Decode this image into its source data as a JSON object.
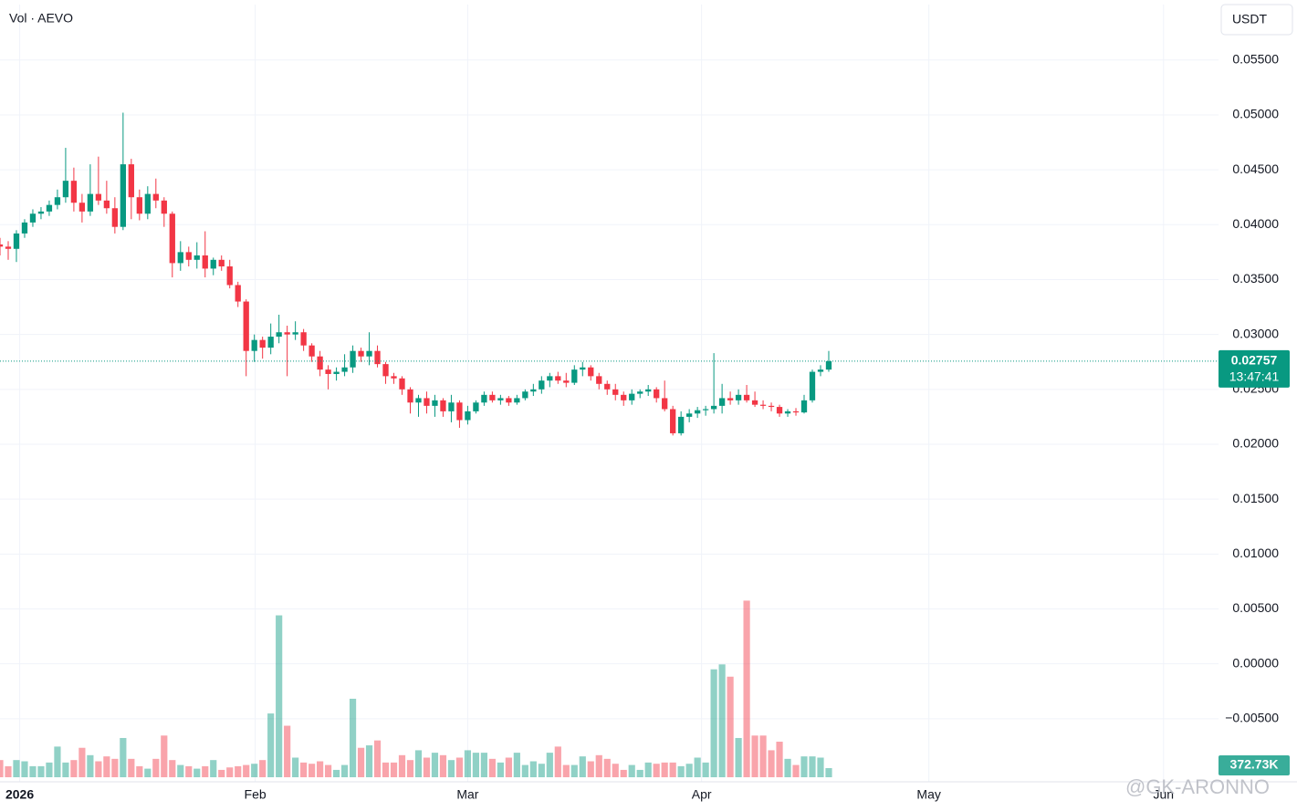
{
  "chart_data": {
    "type": "candlestick",
    "title": "Vol · AEVO",
    "currency": "USDT",
    "up_color": "#089981",
    "down_color": "#f23645",
    "grid": true,
    "ylim": [
      -0.01033,
      0.06005
    ],
    "yticks": [
      {
        "value": 0.055,
        "label": "0.05500"
      },
      {
        "value": 0.05,
        "label": "0.05000"
      },
      {
        "value": 0.045,
        "label": "0.04500"
      },
      {
        "value": 0.04,
        "label": "0.04000"
      },
      {
        "value": 0.035,
        "label": "0.03500"
      },
      {
        "value": 0.03,
        "label": "0.03000"
      },
      {
        "value": 0.025,
        "label": "0.02500"
      },
      {
        "value": 0.02,
        "label": "0.02000"
      },
      {
        "value": 0.015,
        "label": "0.01500"
      },
      {
        "value": 0.01,
        "label": "0.01000"
      },
      {
        "value": 0.005,
        "label": "0.00500"
      },
      {
        "value": 0,
        "label": "0.00000"
      },
      {
        "value": -0.005,
        "label": "−0.00500"
      }
    ],
    "xlim": [
      0,
      148.5
    ],
    "xticks": [
      {
        "value": 2.4,
        "label": "2026"
      },
      {
        "value": 31.1,
        "label": "Feb"
      },
      {
        "value": 57,
        "label": "Mar"
      },
      {
        "value": 85.5,
        "label": "Apr"
      },
      {
        "value": 113.2,
        "label": "May"
      },
      {
        "value": 141.8,
        "label": "Jun"
      }
    ],
    "vlim": [
      0,
      9000000
    ],
    "last_price": 0.02757,
    "countdown": "13:47:41",
    "last_volume_label": "372.73K",
    "watermark": "@GK-ARONNO",
    "ohlc": [
      [
        0.0382,
        0.0388,
        0.0372,
        0.038
      ],
      [
        0.038,
        0.0385,
        0.0368,
        0.0378
      ],
      [
        0.0378,
        0.0395,
        0.0366,
        0.0392
      ],
      [
        0.0392,
        0.0405,
        0.0388,
        0.0402
      ],
      [
        0.0402,
        0.0414,
        0.0398,
        0.041
      ],
      [
        0.041,
        0.0416,
        0.0405,
        0.0412
      ],
      [
        0.0412,
        0.0422,
        0.0408,
        0.0418
      ],
      [
        0.0418,
        0.0432,
        0.0414,
        0.0425
      ],
      [
        0.0425,
        0.047,
        0.042,
        0.044
      ],
      [
        0.044,
        0.0452,
        0.0412,
        0.042
      ],
      [
        0.042,
        0.0428,
        0.0402,
        0.0412
      ],
      [
        0.0412,
        0.0455,
        0.0408,
        0.0428
      ],
      [
        0.0428,
        0.0462,
        0.0418,
        0.0422
      ],
      [
        0.0422,
        0.044,
        0.041,
        0.0415
      ],
      [
        0.0415,
        0.0425,
        0.0392,
        0.0398
      ],
      [
        0.0398,
        0.0502,
        0.0395,
        0.0455
      ],
      [
        0.0455,
        0.046,
        0.0405,
        0.0425
      ],
      [
        0.0425,
        0.0432,
        0.0404,
        0.041
      ],
      [
        0.041,
        0.0435,
        0.0405,
        0.0428
      ],
      [
        0.0428,
        0.0442,
        0.0415,
        0.0422
      ],
      [
        0.0422,
        0.0425,
        0.0398,
        0.041
      ],
      [
        0.041,
        0.0412,
        0.0352,
        0.0365
      ],
      [
        0.0365,
        0.0385,
        0.0358,
        0.0375
      ],
      [
        0.0375,
        0.038,
        0.0362,
        0.0368
      ],
      [
        0.0368,
        0.0384,
        0.036,
        0.0372
      ],
      [
        0.0372,
        0.0394,
        0.0352,
        0.036
      ],
      [
        0.036,
        0.037,
        0.0354,
        0.0368
      ],
      [
        0.0368,
        0.0372,
        0.0358,
        0.0362
      ],
      [
        0.0362,
        0.0368,
        0.0342,
        0.0345
      ],
      [
        0.0345,
        0.0348,
        0.0325,
        0.033
      ],
      [
        0.033,
        0.0332,
        0.0262,
        0.0285
      ],
      [
        0.0285,
        0.03,
        0.0275,
        0.0295
      ],
      [
        0.0295,
        0.0298,
        0.0278,
        0.0288
      ],
      [
        0.0288,
        0.031,
        0.0282,
        0.0298
      ],
      [
        0.0298,
        0.0318,
        0.0292,
        0.0302
      ],
      [
        0.0302,
        0.0308,
        0.0262,
        0.03
      ],
      [
        0.03,
        0.0312,
        0.0295,
        0.0302
      ],
      [
        0.0302,
        0.0305,
        0.0285,
        0.029
      ],
      [
        0.029,
        0.0292,
        0.0275,
        0.028
      ],
      [
        0.028,
        0.0285,
        0.0262,
        0.0268
      ],
      [
        0.0268,
        0.0272,
        0.025,
        0.0264
      ],
      [
        0.0264,
        0.027,
        0.0258,
        0.0266
      ],
      [
        0.0266,
        0.0282,
        0.0262,
        0.027
      ],
      [
        0.027,
        0.029,
        0.0265,
        0.0285
      ],
      [
        0.0285,
        0.0288,
        0.0275,
        0.028
      ],
      [
        0.028,
        0.0302,
        0.0272,
        0.0285
      ],
      [
        0.0285,
        0.029,
        0.027,
        0.0273
      ],
      [
        0.0273,
        0.0275,
        0.0255,
        0.0262
      ],
      [
        0.0262,
        0.0265,
        0.0255,
        0.026
      ],
      [
        0.026,
        0.0262,
        0.0245,
        0.025
      ],
      [
        0.025,
        0.0252,
        0.0228,
        0.0238
      ],
      [
        0.0238,
        0.0245,
        0.0225,
        0.0242
      ],
      [
        0.0242,
        0.0248,
        0.0228,
        0.0235
      ],
      [
        0.0235,
        0.0245,
        0.0225,
        0.024
      ],
      [
        0.024,
        0.0242,
        0.0225,
        0.023
      ],
      [
        0.023,
        0.0245,
        0.022,
        0.0238
      ],
      [
        0.0238,
        0.024,
        0.0215,
        0.0222
      ],
      [
        0.0222,
        0.0235,
        0.0218,
        0.023
      ],
      [
        0.023,
        0.024,
        0.0228,
        0.0238
      ],
      [
        0.0238,
        0.0248,
        0.0235,
        0.0245
      ],
      [
        0.0245,
        0.0248,
        0.0238,
        0.024
      ],
      [
        0.024,
        0.0245,
        0.0236,
        0.0242
      ],
      [
        0.0242,
        0.0244,
        0.0235,
        0.0238
      ],
      [
        0.0238,
        0.0245,
        0.0236,
        0.0242
      ],
      [
        0.0242,
        0.025,
        0.024,
        0.0248
      ],
      [
        0.0248,
        0.0255,
        0.0244,
        0.025
      ],
      [
        0.025,
        0.0262,
        0.0246,
        0.0258
      ],
      [
        0.0258,
        0.0265,
        0.0252,
        0.0262
      ],
      [
        0.0262,
        0.0266,
        0.0255,
        0.0258
      ],
      [
        0.0258,
        0.0265,
        0.0252,
        0.0256
      ],
      [
        0.0256,
        0.0272,
        0.0254,
        0.0268
      ],
      [
        0.0268,
        0.0275,
        0.0262,
        0.027
      ],
      [
        0.027,
        0.0272,
        0.0258,
        0.0262
      ],
      [
        0.0262,
        0.0265,
        0.025,
        0.0255
      ],
      [
        0.0255,
        0.0258,
        0.0245,
        0.025
      ],
      [
        0.025,
        0.0255,
        0.024,
        0.0245
      ],
      [
        0.0245,
        0.0248,
        0.0235,
        0.024
      ],
      [
        0.024,
        0.025,
        0.0236,
        0.0246
      ],
      [
        0.0246,
        0.025,
        0.0242,
        0.0248
      ],
      [
        0.0248,
        0.0254,
        0.0244,
        0.025
      ],
      [
        0.025,
        0.0252,
        0.0238,
        0.0242
      ],
      [
        0.0242,
        0.0258,
        0.023,
        0.0232
      ],
      [
        0.0232,
        0.0235,
        0.0208,
        0.021
      ],
      [
        0.021,
        0.023,
        0.0208,
        0.0225
      ],
      [
        0.0225,
        0.0232,
        0.022,
        0.0228
      ],
      [
        0.0228,
        0.0234,
        0.0224,
        0.0231
      ],
      [
        0.0231,
        0.0235,
        0.0226,
        0.0232
      ],
      [
        0.0232,
        0.0283,
        0.0228,
        0.0235
      ],
      [
        0.0235,
        0.0255,
        0.0228,
        0.0242
      ],
      [
        0.0242,
        0.0248,
        0.0236,
        0.024
      ],
      [
        0.024,
        0.025,
        0.0236,
        0.0245
      ],
      [
        0.0245,
        0.0254,
        0.0238,
        0.024
      ],
      [
        0.024,
        0.0248,
        0.0234,
        0.0236
      ],
      [
        0.0236,
        0.024,
        0.0232,
        0.0235
      ],
      [
        0.0235,
        0.0238,
        0.023,
        0.0234
      ],
      [
        0.0234,
        0.0236,
        0.0225,
        0.0228
      ],
      [
        0.0228,
        0.0232,
        0.0225,
        0.023
      ],
      [
        0.023,
        0.0233,
        0.0226,
        0.0229
      ],
      [
        0.0229,
        0.0245,
        0.0228,
        0.024
      ],
      [
        0.024,
        0.0268,
        0.0238,
        0.0266
      ],
      [
        0.0266,
        0.0272,
        0.0262,
        0.0268
      ],
      [
        0.0268,
        0.0285,
        0.0266,
        0.02757
      ]
    ],
    "volume": [
      700000,
      450000,
      700000,
      650000,
      450000,
      450000,
      600000,
      1250000,
      600000,
      700000,
      1200000,
      900000,
      650000,
      850000,
      750000,
      1600000,
      750000,
      450000,
      350000,
      750000,
      1700000,
      700000,
      500000,
      450000,
      350000,
      450000,
      700000,
      300000,
      400000,
      450000,
      500000,
      550000,
      700000,
      2600000,
      6600000,
      2100000,
      800000,
      600000,
      550000,
      650000,
      500000,
      300000,
      500000,
      3200000,
      1200000,
      1300000,
      1500000,
      600000,
      600000,
      900000,
      700000,
      1100000,
      800000,
      1000000,
      900000,
      700000,
      800000,
      1100000,
      1000000,
      1000000,
      750000,
      600000,
      800000,
      1000000,
      500000,
      650000,
      550000,
      1000000,
      1250000,
      500000,
      500000,
      850000,
      650000,
      900000,
      750000,
      550000,
      300000,
      500000,
      300000,
      600000,
      550000,
      600000,
      600000,
      450000,
      550000,
      800000,
      600000,
      4400000,
      4600000,
      4100000,
      1600000,
      7200000,
      1700000,
      1700000,
      1100000,
      1450000,
      750000,
      500000,
      850000,
      850000,
      800000,
      372730
    ]
  }
}
